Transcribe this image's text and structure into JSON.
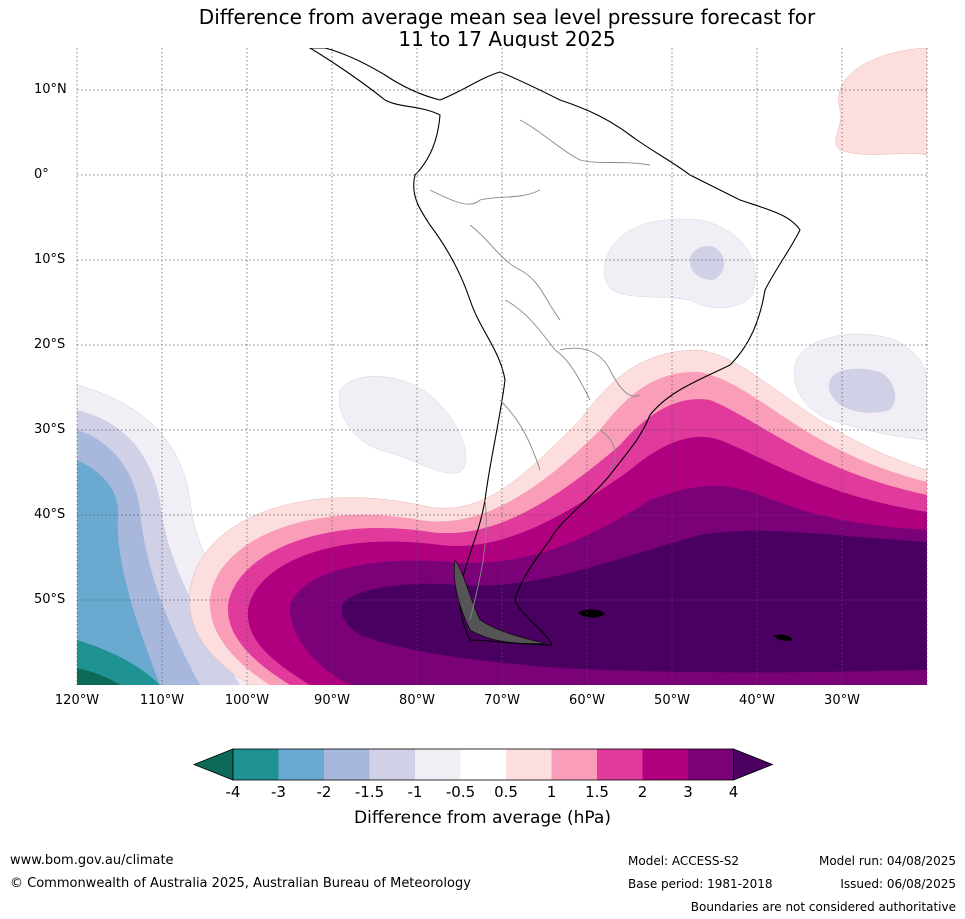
{
  "title": {
    "line1": "Difference from average mean sea level pressure forecast for",
    "line2": "11 to 17 August 2025"
  },
  "lat_labels": [
    "10°N",
    "0°",
    "10°S",
    "20°S",
    "30°S",
    "40°S",
    "50°S"
  ],
  "lon_labels": [
    "120°W",
    "110°W",
    "100°W",
    "90°W",
    "80°W",
    "70°W",
    "60°W",
    "50°W",
    "40°W",
    "30°W"
  ],
  "colorbar": {
    "title": "Difference from average (hPa)",
    "labels": [
      "-4",
      "-3",
      "-2",
      "-1.5",
      "-1",
      "-0.5",
      "0.5",
      "1",
      "1.5",
      "2",
      "3",
      "4"
    ],
    "colors": [
      "#0b6b58",
      "#1f9393",
      "#6aaad0",
      "#a7b8dc",
      "#d0d0e6",
      "#f2eef5",
      "#ffffff",
      "#fddede",
      "#f99db9",
      "#e03a9c",
      "#b1007f",
      "#7a0177",
      "#4a0060"
    ]
  },
  "footer": {
    "url": "www.bom.gov.au/climate",
    "copyright": "© Commonwealth of Australia 2025, Australian Bureau of Meteorology",
    "model": "Model: ACCESS-S2",
    "base_period": "Base period: 1981-2018",
    "model_run": "Model run: 04/08/2025",
    "issued": "Issued: 06/08/2025",
    "disclaimer": "Boundaries are not considered authoritative"
  }
}
